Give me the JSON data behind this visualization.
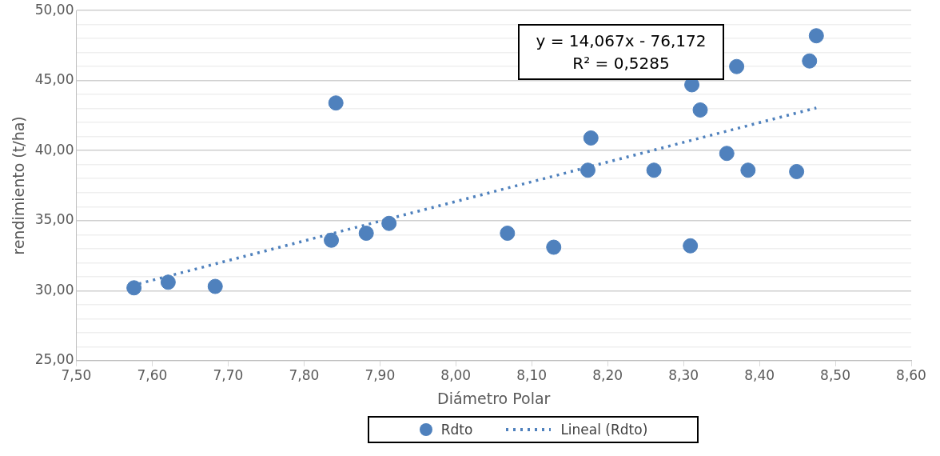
{
  "chart_data": {
    "type": "scatter",
    "xlabel": "Diámetro Polar",
    "ylabel": "rendimiento (t/ha)",
    "xlim": [
      7.5,
      8.6
    ],
    "xticks": [
      {
        "value": 7.5,
        "label": "7,50"
      },
      {
        "value": 7.6,
        "label": "7,60"
      },
      {
        "value": 7.7,
        "label": "7,70"
      },
      {
        "value": 7.8,
        "label": "7,80"
      },
      {
        "value": 7.9,
        "label": "7,90"
      },
      {
        "value": 8.0,
        "label": "8,00"
      },
      {
        "value": 8.1,
        "label": "8,10"
      },
      {
        "value": 8.2,
        "label": "8,20"
      },
      {
        "value": 8.3,
        "label": "8,30"
      },
      {
        "value": 8.4,
        "label": "8,40"
      },
      {
        "value": 8.5,
        "label": "8,50"
      },
      {
        "value": 8.6,
        "label": "8,60"
      }
    ],
    "ylim": [
      25,
      50
    ],
    "yticks": [
      {
        "value": 25,
        "label": "25,00"
      },
      {
        "value": 26,
        "label": null
      },
      {
        "value": 27,
        "label": null
      },
      {
        "value": 28,
        "label": null
      },
      {
        "value": 29,
        "label": null
      },
      {
        "value": 30,
        "label": "30,00"
      },
      {
        "value": 31,
        "label": null
      },
      {
        "value": 32,
        "label": null
      },
      {
        "value": 33,
        "label": null
      },
      {
        "value": 34,
        "label": null
      },
      {
        "value": 35,
        "label": "35,00"
      },
      {
        "value": 36,
        "label": null
      },
      {
        "value": 37,
        "label": null
      },
      {
        "value": 38,
        "label": null
      },
      {
        "value": 39,
        "label": null
      },
      {
        "value": 40,
        "label": "40,00"
      },
      {
        "value": 41,
        "label": null
      },
      {
        "value": 42,
        "label": null
      },
      {
        "value": 43,
        "label": null
      },
      {
        "value": 44,
        "label": null
      },
      {
        "value": 45,
        "label": "45,00"
      },
      {
        "value": 46,
        "label": null
      },
      {
        "value": 47,
        "label": null
      },
      {
        "value": 48,
        "label": null
      },
      {
        "value": 49,
        "label": null
      },
      {
        "value": 50,
        "label": "50,00"
      }
    ],
    "grid": "y",
    "legend": "bottom",
    "marker": "circle",
    "annotations": [
      "y = 14,067x - 76,172\nR² = 0,5285"
    ],
    "series": [
      {
        "name": "Rdto",
        "type": "scatter",
        "color": "#4f81bd",
        "x": [
          7.576,
          7.621,
          7.683,
          7.836,
          7.842,
          7.882,
          7.912,
          8.068,
          8.129,
          8.174,
          8.178,
          8.261,
          8.309,
          8.311,
          8.322,
          8.357,
          8.37,
          8.385,
          8.449,
          8.466,
          8.475
        ],
        "values": [
          30.2,
          30.6,
          30.3,
          33.6,
          43.4,
          34.1,
          34.8,
          34.1,
          33.1,
          38.6,
          40.9,
          38.6,
          33.2,
          44.7,
          42.9,
          39.8,
          46.0,
          38.6,
          38.5,
          46.4,
          48.2
        ]
      },
      {
        "name": "Lineal (Rdto)",
        "type": "line",
        "color": "#4f81bd",
        "line_style": "dotted",
        "marker": "none",
        "x": [
          7.576,
          8.475
        ],
        "values": [
          30.4,
          43.05
        ]
      }
    ]
  }
}
